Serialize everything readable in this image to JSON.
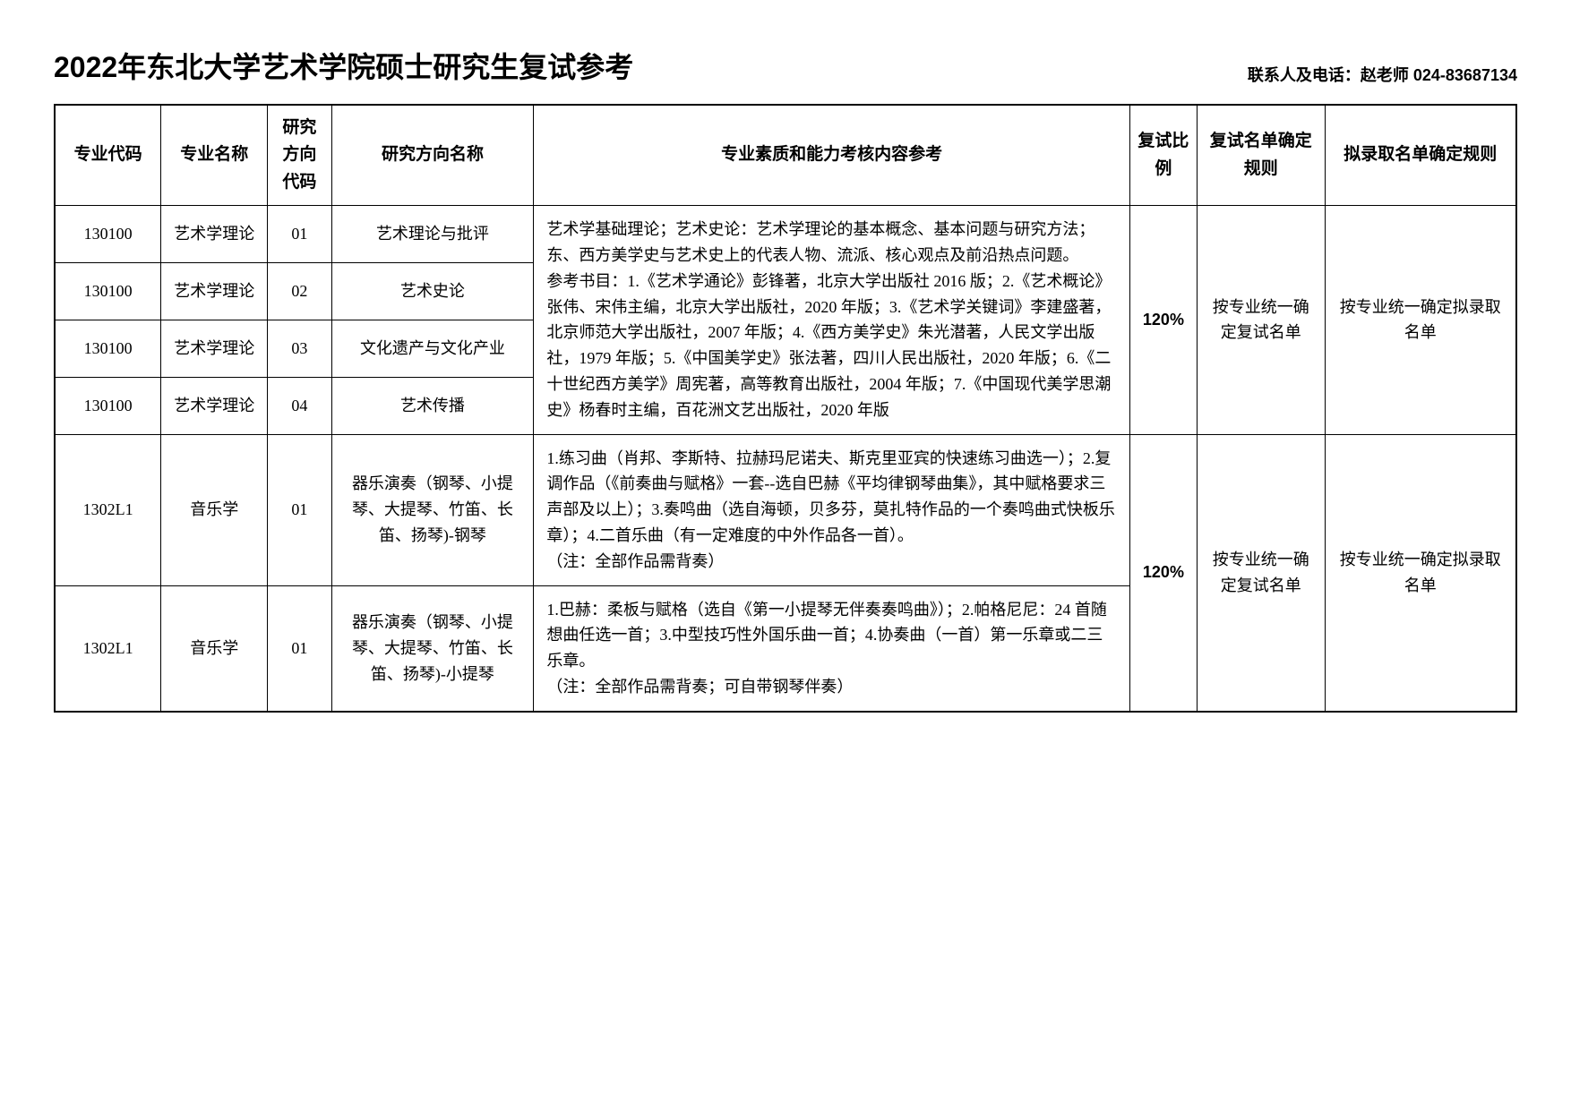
{
  "header": {
    "title": "2022年东北大学艺术学院硕士研究生复试参考",
    "contact": "联系人及电话：赵老师 024-83687134"
  },
  "table": {
    "columns": [
      "专业代码",
      "专业名称",
      "研究方向代码",
      "研究方向名称",
      "专业素质和能力考核内容参考",
      "复试比例",
      "复试名单确定规则",
      "拟录取名单确定规则"
    ],
    "content_block1": "艺术学基础理论；艺术史论：艺术学理论的基本概念、基本问题与研究方法；东、西方美学史与艺术史上的代表人物、流派、核心观点及前沿热点问题。\n参考书目：1.《艺术学通论》彭锋著，北京大学出版社 2016 版；2.《艺术概论》张伟、宋伟主编，北京大学出版社，2020 年版；3.《艺术学关键词》李建盛著，北京师范大学出版社，2007 年版；4.《西方美学史》朱光潜著，人民文学出版社，1979 年版；5.《中国美学史》张法著，四川人民出版社，2020 年版；6.《二十世纪西方美学》周宪著，高等教育出版社，2004 年版；7.《中国现代美学思潮史》杨春时主编，百花洲文艺出版社，2020 年版",
    "content_block1_part1": "艺术学基础理论；艺术史论：艺术学理论的基本概念、基本问题与研究方法；东、西方美学史与艺术史上的代表人物、流派、核心观",
    "content_block1_part2": "点及前沿热点问题。\n参考书目：1.《艺术学通论》彭锋著，北京大学出版社 2016 版；2.《艺术概论》张伟、宋伟主编，北京大学出版社，2020 年版；",
    "content_block1_part3": "3.《艺术学关键词》李建盛著，北京师范大学出版社，2007 年版；4.《西方美学史》朱光潜著，人民文学出版社，1979 年版；5.《中国美学史》张法著，四川人民出版社，2020 年版；6.《二十世纪",
    "content_block1_part4": "西方美学》周宪著，高等教育出版社，2004 年版；7.《中国现代美学思潮史》杨春时主编，百花洲文艺出版社，2020 年版",
    "rows": [
      {
        "code": "130100",
        "major": "艺术学理论",
        "dir_code": "01",
        "dir_name": "艺术理论与批评"
      },
      {
        "code": "130100",
        "major": "艺术学理论",
        "dir_code": "02",
        "dir_name": "艺术史论"
      },
      {
        "code": "130100",
        "major": "艺术学理论",
        "dir_code": "03",
        "dir_name": "文化遗产与文化产业"
      },
      {
        "code": "130100",
        "major": "艺术学理论",
        "dir_code": "04",
        "dir_name": "艺术传播"
      },
      {
        "code": "1302L1",
        "major": "音乐学",
        "dir_code": "01",
        "dir_name": "器乐演奏（钢琴、小提琴、大提琴、竹笛、长笛、扬琴)-钢琴",
        "content": "1.练习曲（肖邦、李斯特、拉赫玛尼诺夫、斯克里亚宾的快速练习曲选一）；2.复调作品（《前奏曲与赋格》一套--选自巴赫《平均律钢琴曲集》，其中赋格要求三声部及以上）；3.奏鸣曲（选自海顿，贝多芬，莫扎特作品的一个奏鸣曲式快板乐章）；4.二首乐曲（有一定难度的中外作品各一首）。\n（注：全部作品需背奏）"
      },
      {
        "code": "1302L1",
        "major": "音乐学",
        "dir_code": "01",
        "dir_name": "器乐演奏（钢琴、小提琴、大提琴、竹笛、长笛、扬琴)-小提琴",
        "content": "1.巴赫：柔板与赋格（选自《第一小提琴无伴奏奏鸣曲》）；2.帕格尼尼：24 首随想曲任选一首；3.中型技巧性外国乐曲一首；4.协奏曲（一首）第一乐章或二三乐章。\n（注：全部作品需背奏；可自带钢琴伴奏）"
      }
    ],
    "ratio": "120%",
    "rule1": "按专业统一确定复试名单",
    "rule2": "按专业统一确定拟录取名单"
  }
}
